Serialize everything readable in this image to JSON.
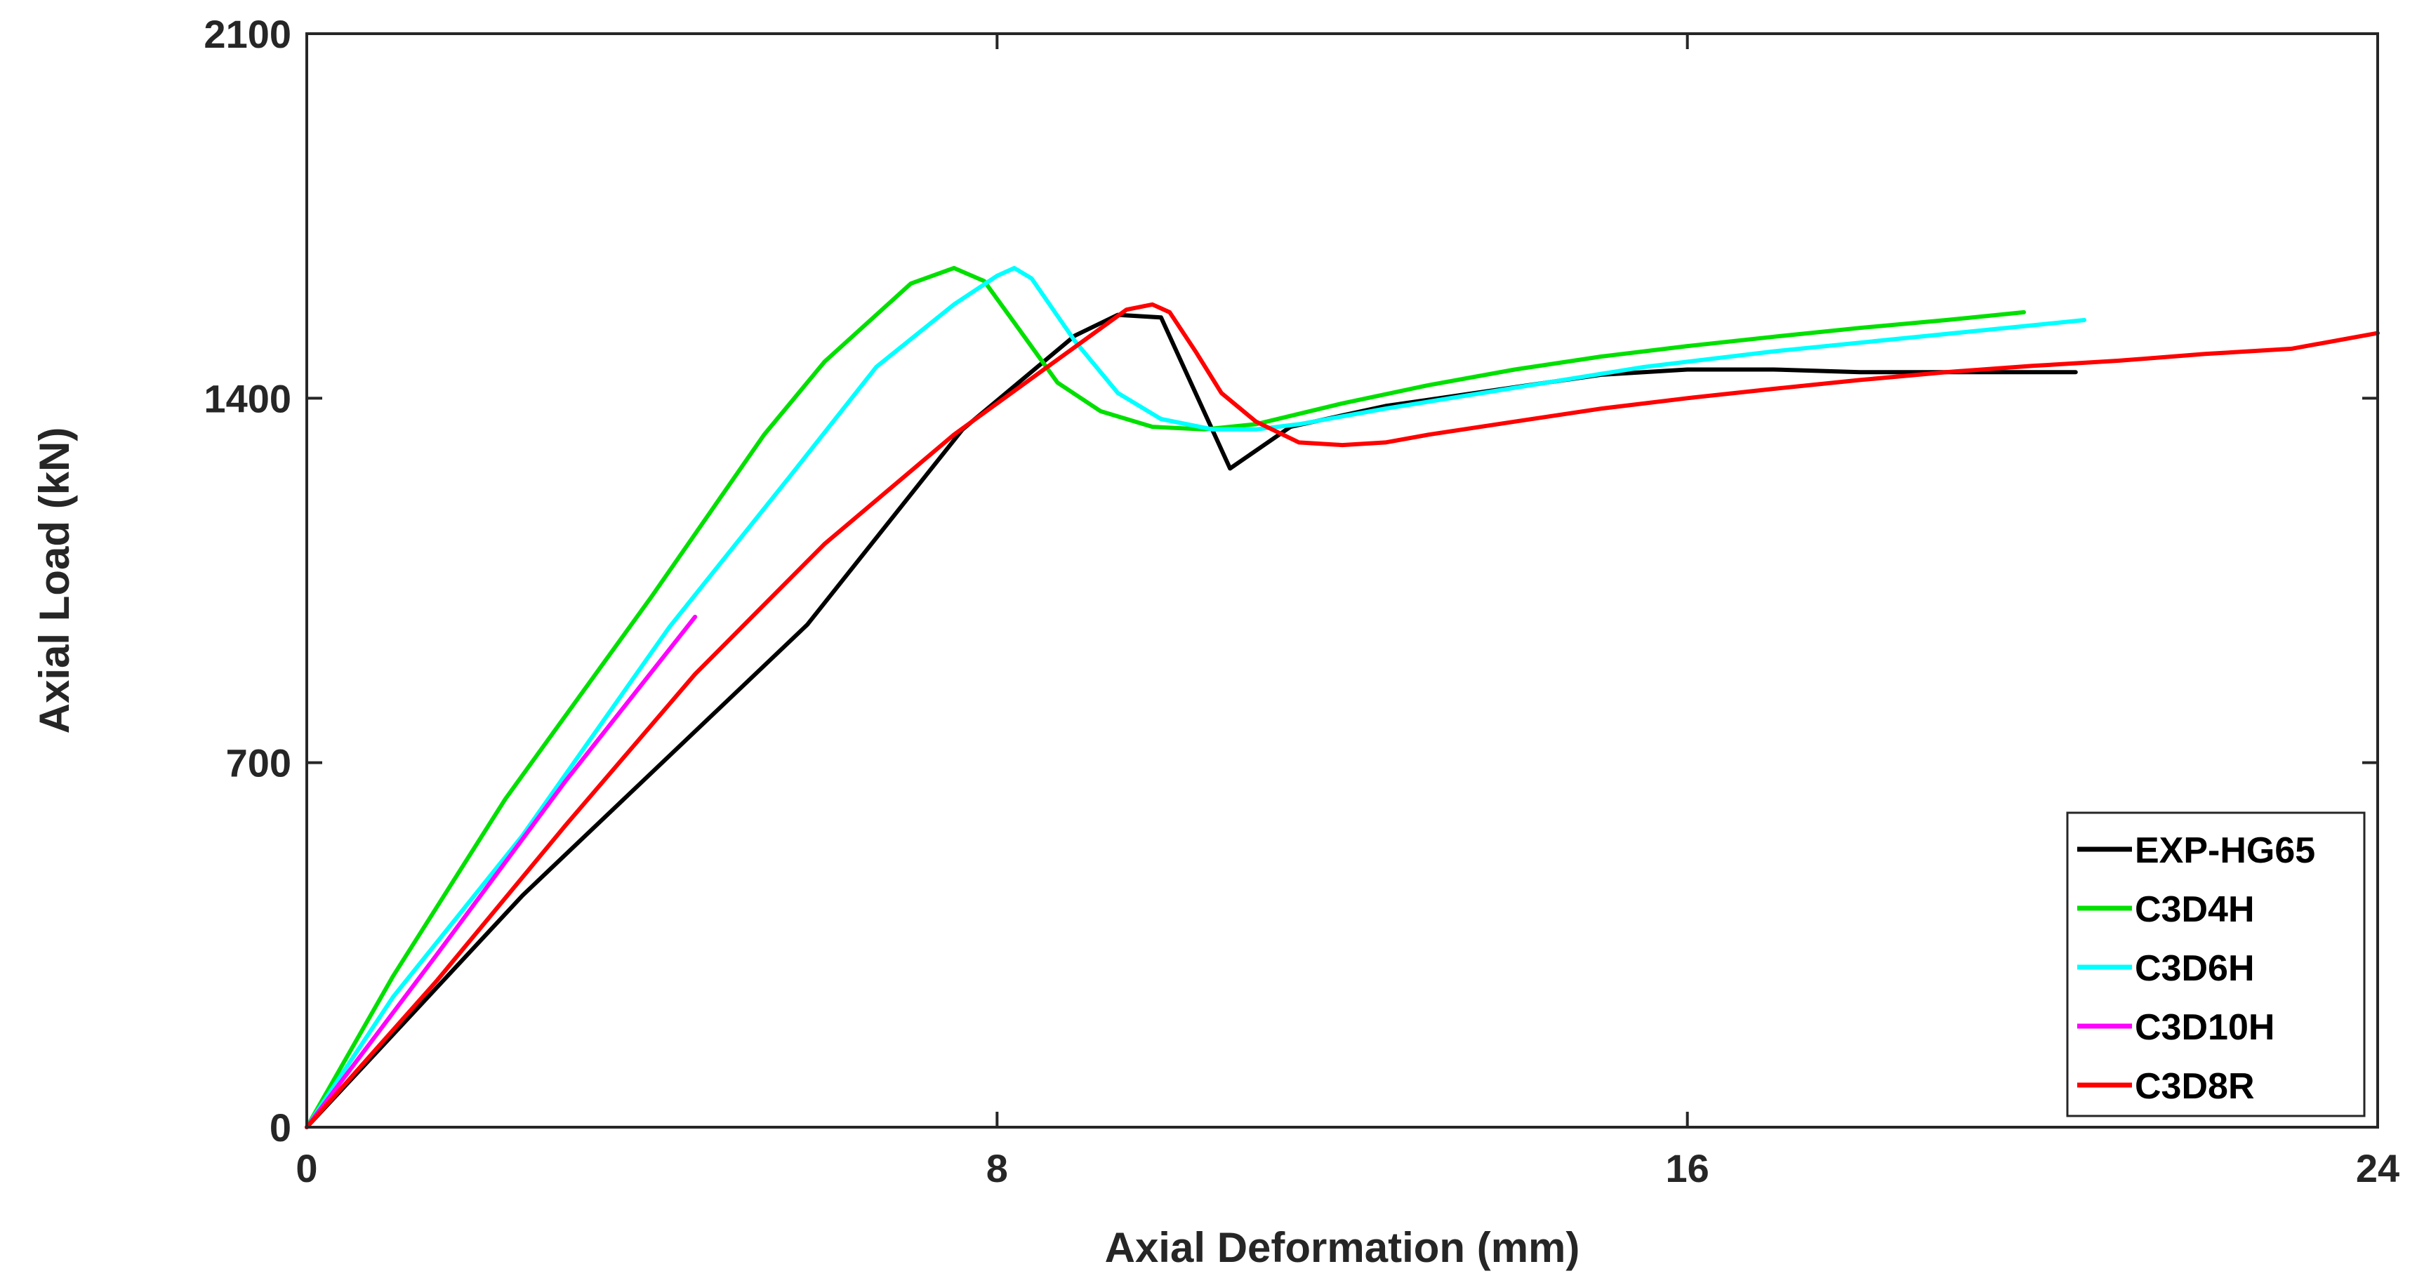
{
  "chart_data": {
    "type": "line",
    "title": "",
    "xlabel": "Axial Deformation (mm)",
    "ylabel": "Axial Load (kN)",
    "xlim": [
      0,
      24
    ],
    "ylim": [
      0,
      2100
    ],
    "xticks": [
      0,
      8,
      16,
      24
    ],
    "yticks": [
      0,
      700,
      1400,
      2100
    ],
    "xtick_labels": [
      "0",
      "8",
      "16",
      "24"
    ],
    "ytick_labels": [
      "0",
      "700",
      "1400",
      "2100"
    ],
    "grid": false,
    "legend_position": "bottom-right",
    "series": [
      {
        "name": "EXP-HG65",
        "color": "#000000",
        "x": [
          0,
          2.5,
          5.8,
          7.6,
          8.9,
          9.4,
          9.9,
          10.7,
          11.4,
          12.5,
          15.0,
          16.0,
          17.0,
          18.0,
          20.0,
          20.5
        ],
        "y": [
          0,
          445,
          965,
          1340,
          1520,
          1560,
          1555,
          1265,
          1345,
          1385,
          1445,
          1455,
          1455,
          1450,
          1450,
          1450
        ]
      },
      {
        "name": "C3D4H",
        "color": "#00e000",
        "x": [
          0,
          1.0,
          2.3,
          4.0,
          5.3,
          6.0,
          7.0,
          7.5,
          7.85,
          8.2,
          8.7,
          9.2,
          9.8,
          10.4,
          11.0,
          12.0,
          13.0,
          14.0,
          15.0,
          16.0,
          17.0,
          18.0,
          19.0,
          19.9
        ],
        "y": [
          0,
          290,
          630,
          1020,
          1330,
          1470,
          1620,
          1650,
          1625,
          1545,
          1430,
          1375,
          1345,
          1340,
          1350,
          1390,
          1425,
          1455,
          1480,
          1500,
          1518,
          1535,
          1550,
          1565
        ]
      },
      {
        "name": "C3D6H",
        "color": "#00ffff",
        "x": [
          0,
          1.0,
          2.5,
          4.2,
          5.6,
          6.6,
          7.5,
          8.0,
          8.2,
          8.4,
          8.9,
          9.4,
          9.9,
          10.5,
          11.0,
          11.5,
          12.5,
          14.0,
          15.5,
          17.0,
          18.5,
          20.0,
          20.6
        ],
        "y": [
          0,
          250,
          560,
          960,
          1250,
          1460,
          1580,
          1635,
          1650,
          1630,
          1510,
          1410,
          1360,
          1340,
          1340,
          1350,
          1380,
          1420,
          1460,
          1490,
          1515,
          1540,
          1550
        ]
      },
      {
        "name": "C3D10H",
        "color": "#ff00ff",
        "x": [
          0,
          1.5,
          3.0,
          4.5
        ],
        "y": [
          0,
          330,
          665,
          980
        ]
      },
      {
        "name": "C3D8R",
        "color": "#ff0000",
        "x": [
          0,
          1.5,
          3.0,
          4.5,
          6.0,
          7.5,
          8.5,
          9.0,
          9.5,
          9.8,
          10.0,
          10.3,
          10.6,
          11.0,
          11.5,
          12.0,
          12.5,
          13.0,
          14.0,
          15.0,
          16.0,
          17.0,
          18.0,
          19.0,
          20.0,
          21.0,
          22.0,
          23.0,
          24.0
        ],
        "y": [
          0,
          280,
          580,
          870,
          1120,
          1330,
          1450,
          1510,
          1570,
          1580,
          1565,
          1490,
          1410,
          1355,
          1315,
          1310,
          1315,
          1330,
          1355,
          1380,
          1400,
          1418,
          1435,
          1450,
          1462,
          1472,
          1485,
          1495,
          1525
        ]
      }
    ]
  }
}
